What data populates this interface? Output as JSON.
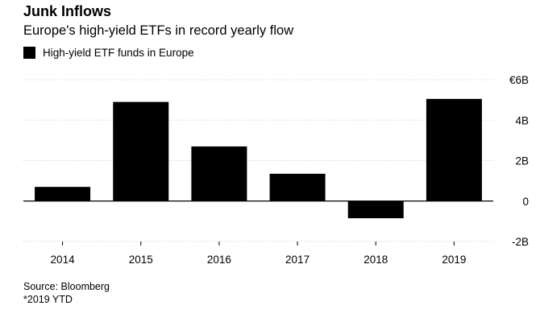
{
  "header": {
    "title": "Junk Inflows",
    "subtitle": "Europe's high-yield ETFs in record yearly flow"
  },
  "legend": {
    "label": "High-yield ETF funds in Europe",
    "color": "#000000"
  },
  "chart_data": {
    "type": "bar",
    "title": "Junk Inflows",
    "subtitle": "Europe's high-yield ETFs in record yearly flow",
    "categories": [
      "2014",
      "2015",
      "2016",
      "2017",
      "2018",
      "2019"
    ],
    "series": [
      {
        "name": "High-yield ETF funds in Europe",
        "values": [
          0.7,
          4.9,
          2.7,
          1.35,
          -0.85,
          5.05
        ],
        "color": "#000000"
      }
    ],
    "ylim": [
      -2,
      6
    ],
    "yticks": [
      -2,
      0,
      2,
      4,
      6
    ],
    "ytick_labels": [
      "-2B",
      "0",
      "2B",
      "4B",
      "€6B"
    ],
    "xlabel": "",
    "ylabel": "",
    "grid": true,
    "y_axis_position": "right"
  },
  "footer": {
    "source": "Source: Bloomberg",
    "note": "*2019 YTD"
  }
}
